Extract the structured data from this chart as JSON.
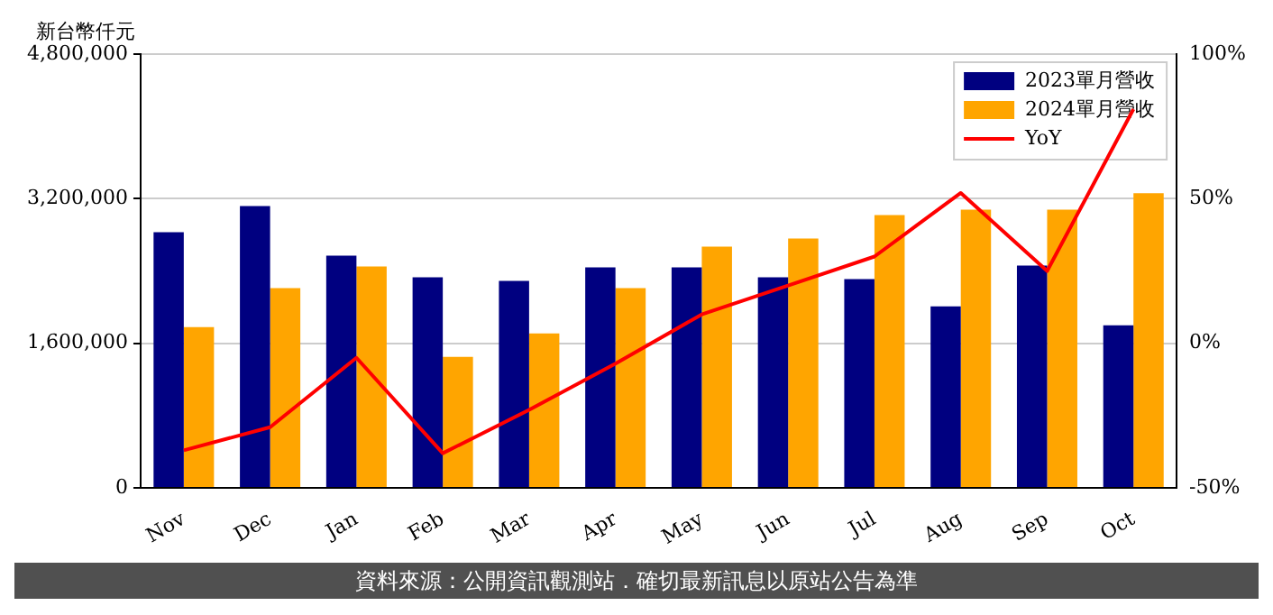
{
  "chart_data": {
    "type": "bar",
    "ylabel": "新台幣仟元",
    "categories": [
      "Nov",
      "Dec",
      "Jan",
      "Feb",
      "Mar",
      "Apr",
      "May",
      "Jun",
      "Jul",
      "Aug",
      "Sep",
      "Oct"
    ],
    "series": [
      {
        "name": "2023單月營收",
        "color": "#000080",
        "values": [
          2830000,
          3120000,
          2570000,
          2330000,
          2290000,
          2440000,
          2440000,
          2330000,
          2310000,
          2010000,
          2460000,
          1800000
        ]
      },
      {
        "name": "2024單月營收",
        "color": "#ffa500",
        "values": [
          1780000,
          2210000,
          2450000,
          1450000,
          1710000,
          2210000,
          2670000,
          2760000,
          3020000,
          3080000,
          3080000,
          3260000
        ]
      },
      {
        "name": "YoY",
        "color": "#ff0000",
        "type": "line",
        "axis": "y2",
        "marker": "none",
        "values": [
          -37,
          -29,
          -5,
          -38,
          -23,
          -7,
          10,
          20,
          30,
          52,
          25,
          81
        ]
      }
    ],
    "ylim": [
      0,
      4800000
    ],
    "yticks": [
      {
        "value": 0,
        "label": "0"
      },
      {
        "value": 1600000,
        "label": "1,600,000"
      },
      {
        "value": 3200000,
        "label": "3,200,000"
      },
      {
        "value": 4800000,
        "label": "4,800,000"
      }
    ],
    "y2lim": [
      -50,
      100
    ],
    "y2ticks": [
      {
        "value": -50,
        "label": "-50%"
      },
      {
        "value": 0,
        "label": "0%"
      },
      {
        "value": 50,
        "label": "50%"
      },
      {
        "value": 100,
        "label": "100%"
      }
    ],
    "grid": "y",
    "legend": "top right",
    "annotations": [
      "資料來源：公開資訊觀測站．確切最新訊息以原站公告為準"
    ]
  }
}
